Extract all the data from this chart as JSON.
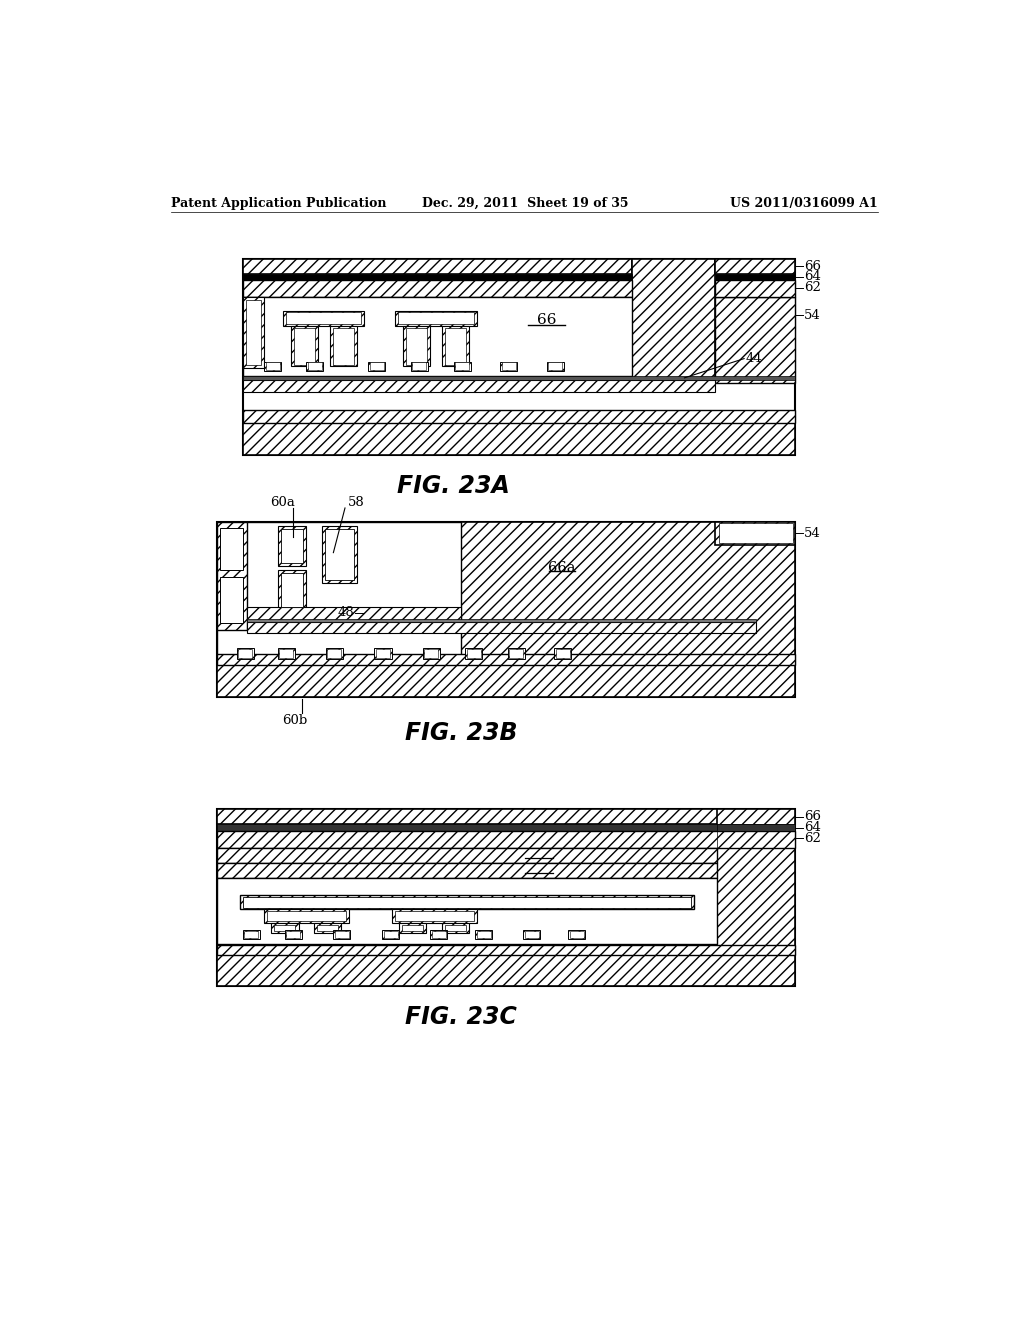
{
  "header_left": "Patent Application Publication",
  "header_mid": "Dec. 29, 2011  Sheet 19 of 35",
  "header_right": "US 2011/0316099 A1",
  "fig_labels": [
    "FIG. 23A",
    "FIG. 23B",
    "FIG. 23C"
  ],
  "background_color": "#ffffff"
}
